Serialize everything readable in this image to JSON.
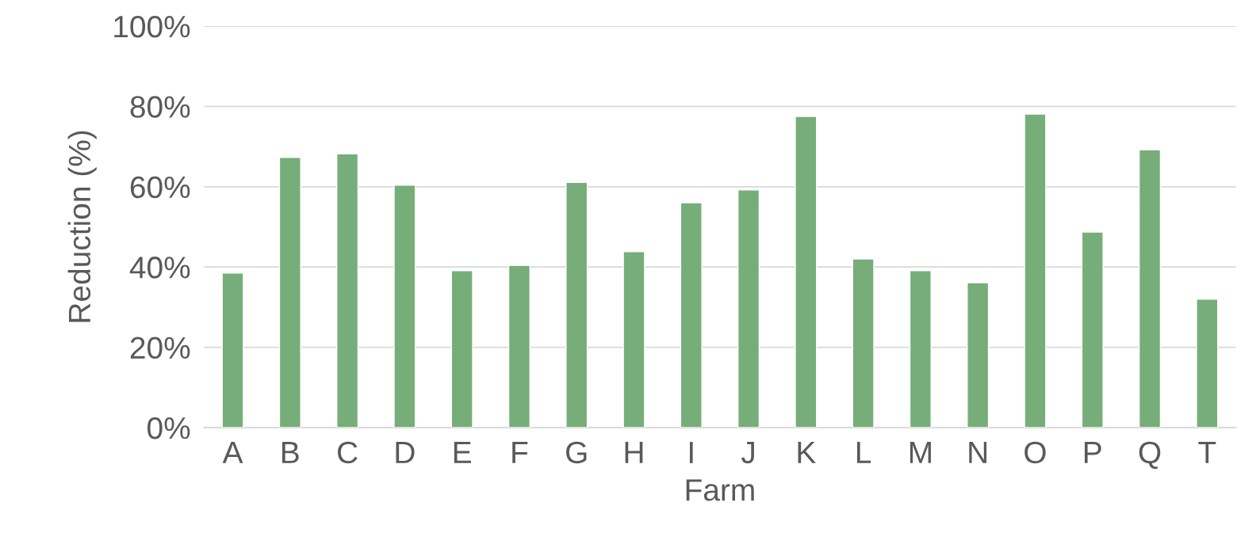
{
  "chart_data": {
    "type": "bar",
    "xlabel": "Farm",
    "ylabel": "Reduction (%)",
    "categories": [
      "A",
      "B",
      "C",
      "D",
      "E",
      "F",
      "G",
      "H",
      "I",
      "J",
      "K",
      "L",
      "M",
      "N",
      "O",
      "P",
      "Q",
      "T"
    ],
    "values": [
      38.5,
      67.3,
      68.2,
      60.4,
      39.1,
      40.4,
      61.1,
      43.8,
      56.0,
      59.2,
      77.5,
      42.0,
      39.1,
      36.1,
      78.1,
      48.7,
      69.2,
      32.0
    ],
    "color": "#77ad78",
    "ylim": [
      0,
      100
    ],
    "yticks": [
      {
        "value": 0,
        "label": "0%"
      },
      {
        "value": 20,
        "label": "20%"
      },
      {
        "value": 40,
        "label": "40%"
      },
      {
        "value": 60,
        "label": "60%"
      },
      {
        "value": 80,
        "label": "80%"
      },
      {
        "value": 100,
        "label": "100%"
      }
    ],
    "grid": "y",
    "legend": false
  }
}
